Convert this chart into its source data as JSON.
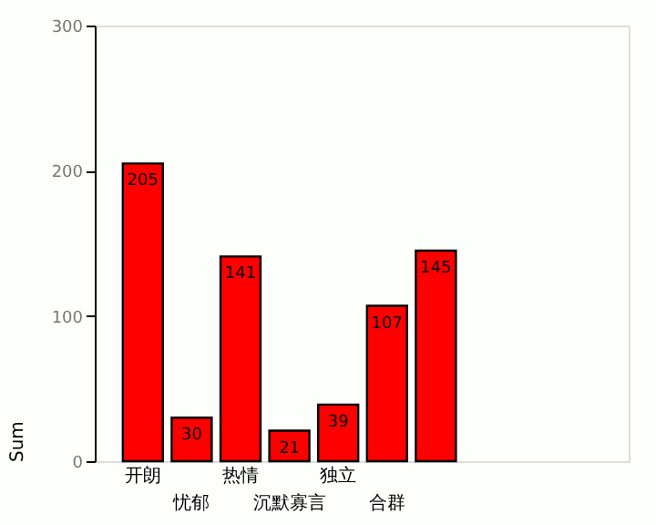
{
  "chart_data": {
    "type": "bar",
    "ylabel": "Sum",
    "categories": [
      "开朗",
      "忧郁",
      "热情",
      "沉默寡言",
      "独立",
      "合群",
      null
    ],
    "values": [
      205,
      30,
      141,
      21,
      39,
      107,
      145
    ],
    "color": "#ff0000",
    "ylim": [
      0,
      300
    ],
    "yticks": [
      0,
      100,
      200,
      300
    ],
    "grid": false,
    "data_labels": true
  }
}
